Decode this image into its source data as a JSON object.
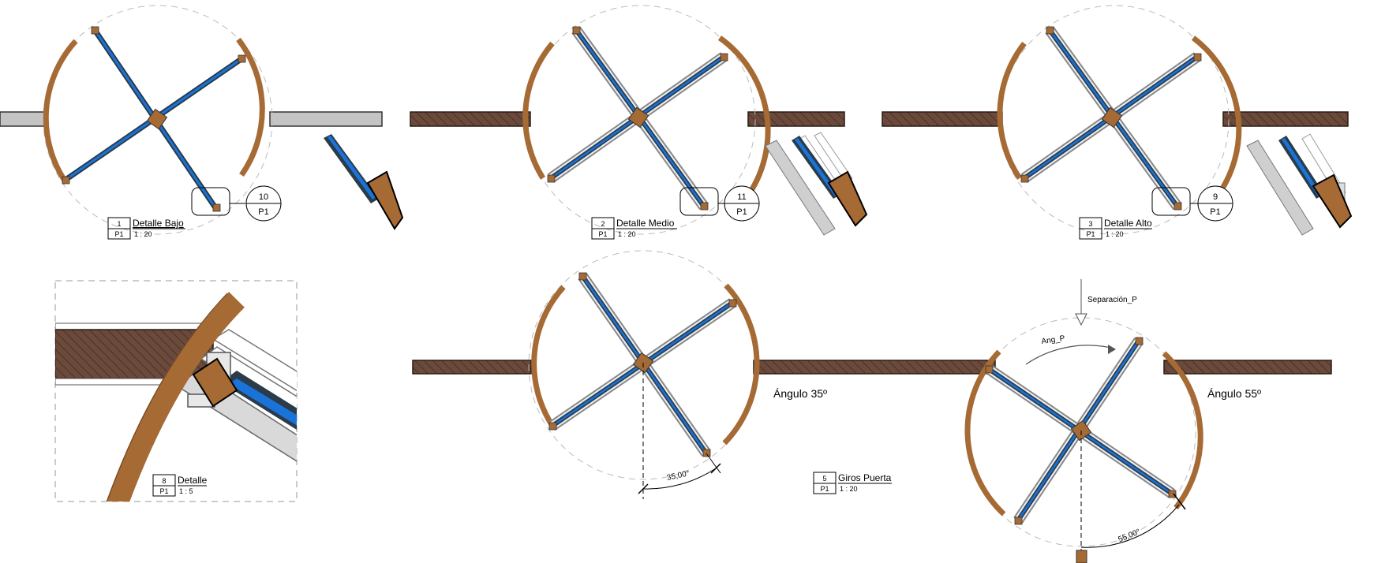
{
  "views": [
    {
      "num": "1",
      "sheet": "P1",
      "title": "Detalle Bajo",
      "scale": "1 : 20"
    },
    {
      "num": "2",
      "sheet": "P1",
      "title": "Detalle Medio",
      "scale": "1 : 20"
    },
    {
      "num": "3",
      "sheet": "P1",
      "title": "Detalle Alto",
      "scale": "1 : 20"
    },
    {
      "num": "8",
      "sheet": "P1",
      "title": "Detalle",
      "scale": "1 : 5"
    },
    {
      "num": "5",
      "sheet": "P1",
      "title": "Giros Puerta",
      "scale": "1 : 20"
    }
  ],
  "callouts": [
    {
      "num": "10",
      "sheet": "P1"
    },
    {
      "num": "11",
      "sheet": "P1"
    },
    {
      "num": "9",
      "sheet": "P1"
    }
  ],
  "labels": {
    "angle_35": "Ángulo 35º",
    "angle_55": "Ángulo 55º",
    "separation": "Separación_P",
    "ang_param": "Ang_P",
    "dim_35": "35,00°",
    "dim_55": "55,00°"
  },
  "colors": {
    "wood": "#a66a35",
    "wall_dark": "#5a3a2e",
    "glass_blue": "#1a73d8",
    "frame_dark": "#2a3b4a",
    "grey_wall": "#c4c4c4"
  }
}
